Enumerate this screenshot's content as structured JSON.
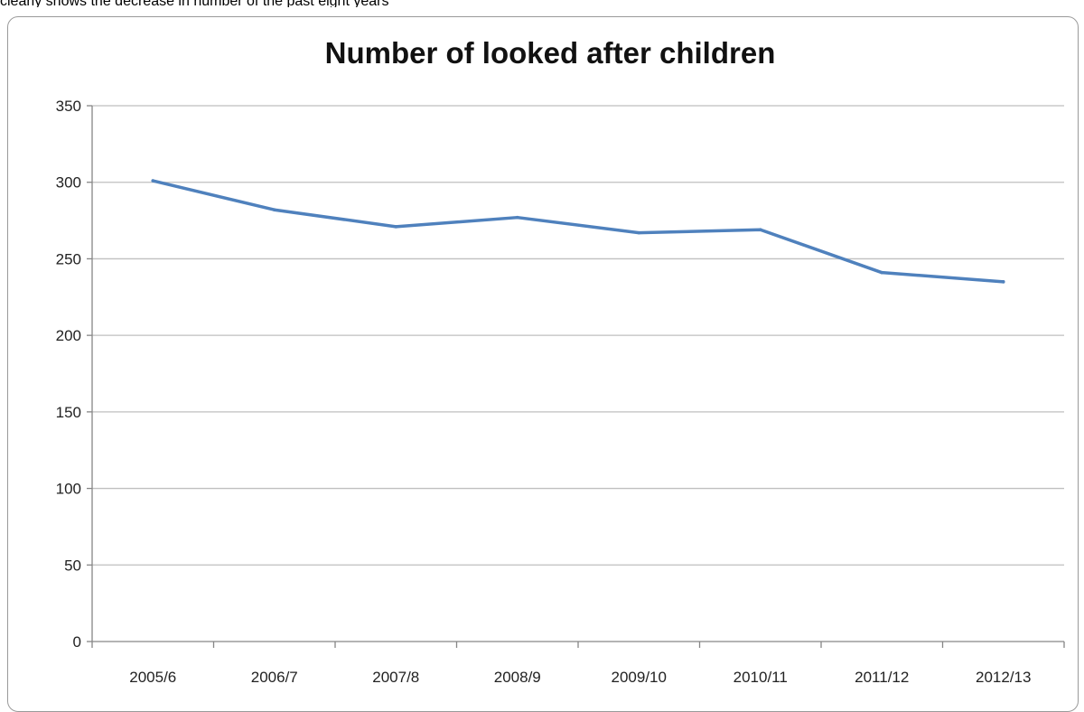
{
  "top_fragment_text": "clearly shows the decrease in number of the past eight years",
  "chart_data": {
    "type": "line",
    "title": "Number of looked after children",
    "xlabel": "",
    "ylabel": "",
    "categories": [
      "2005/6",
      "2006/7",
      "2007/8",
      "2008/9",
      "2009/10",
      "2010/11",
      "2011/12",
      "2012/13"
    ],
    "series": [
      {
        "values": [
          301,
          282,
          271,
          277,
          267,
          269,
          241,
          235
        ]
      }
    ],
    "ylim": [
      0,
      350
    ],
    "yticks": [
      0,
      50,
      100,
      150,
      200,
      250,
      300,
      350
    ],
    "grid": true,
    "legend": "none",
    "colors": {
      "line": "#4f81bd",
      "grid": "#bfbfbf",
      "axis": "#868686"
    }
  }
}
